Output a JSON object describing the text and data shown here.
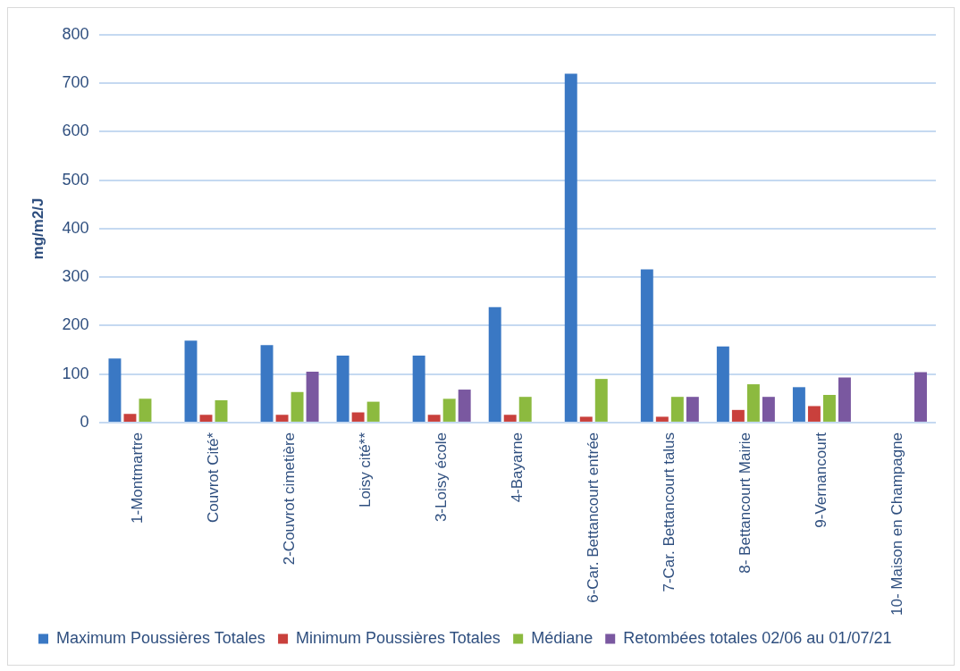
{
  "chart_data": {
    "type": "bar",
    "ylabel": "mg/m2/J",
    "categories": [
      "1-Montmartre",
      "Couvrot Cité*",
      "2-Couvrot cimetière",
      "Loisy cité**",
      "3-Loisy école",
      "4-Bayarne",
      "6-Car. Bettancourt entrée",
      "7-Car. Bettancourt talus",
      "8- Bettancourt Mairie",
      "9-Vernancourt",
      "10- Maison en Champagne"
    ],
    "series": [
      {
        "name": "Maximum Poussières Totales",
        "color": "#3a78c4",
        "values": [
          132,
          169,
          160,
          138,
          138,
          238,
          720,
          316,
          157,
          73,
          null
        ]
      },
      {
        "name": "Minimum Poussières Totales",
        "color": "#c9403c",
        "values": [
          18,
          16,
          16,
          21,
          16,
          16,
          12,
          12,
          26,
          34,
          null
        ]
      },
      {
        "name": "Médiane",
        "color": "#8cba3f",
        "values": [
          49,
          46,
          63,
          43,
          49,
          53,
          90,
          53,
          79,
          57,
          null
        ]
      },
      {
        "name": "Retombées totales 02/06 au 01/07/21",
        "color": "#7a58a0",
        "values": [
          null,
          null,
          105,
          null,
          68,
          null,
          null,
          53,
          53,
          93,
          104
        ]
      }
    ],
    "ylim": [
      0,
      800
    ],
    "yticks": [
      0,
      100,
      200,
      300,
      400,
      500,
      600,
      700,
      800
    ],
    "grid": "y",
    "legend": "bottom"
  }
}
